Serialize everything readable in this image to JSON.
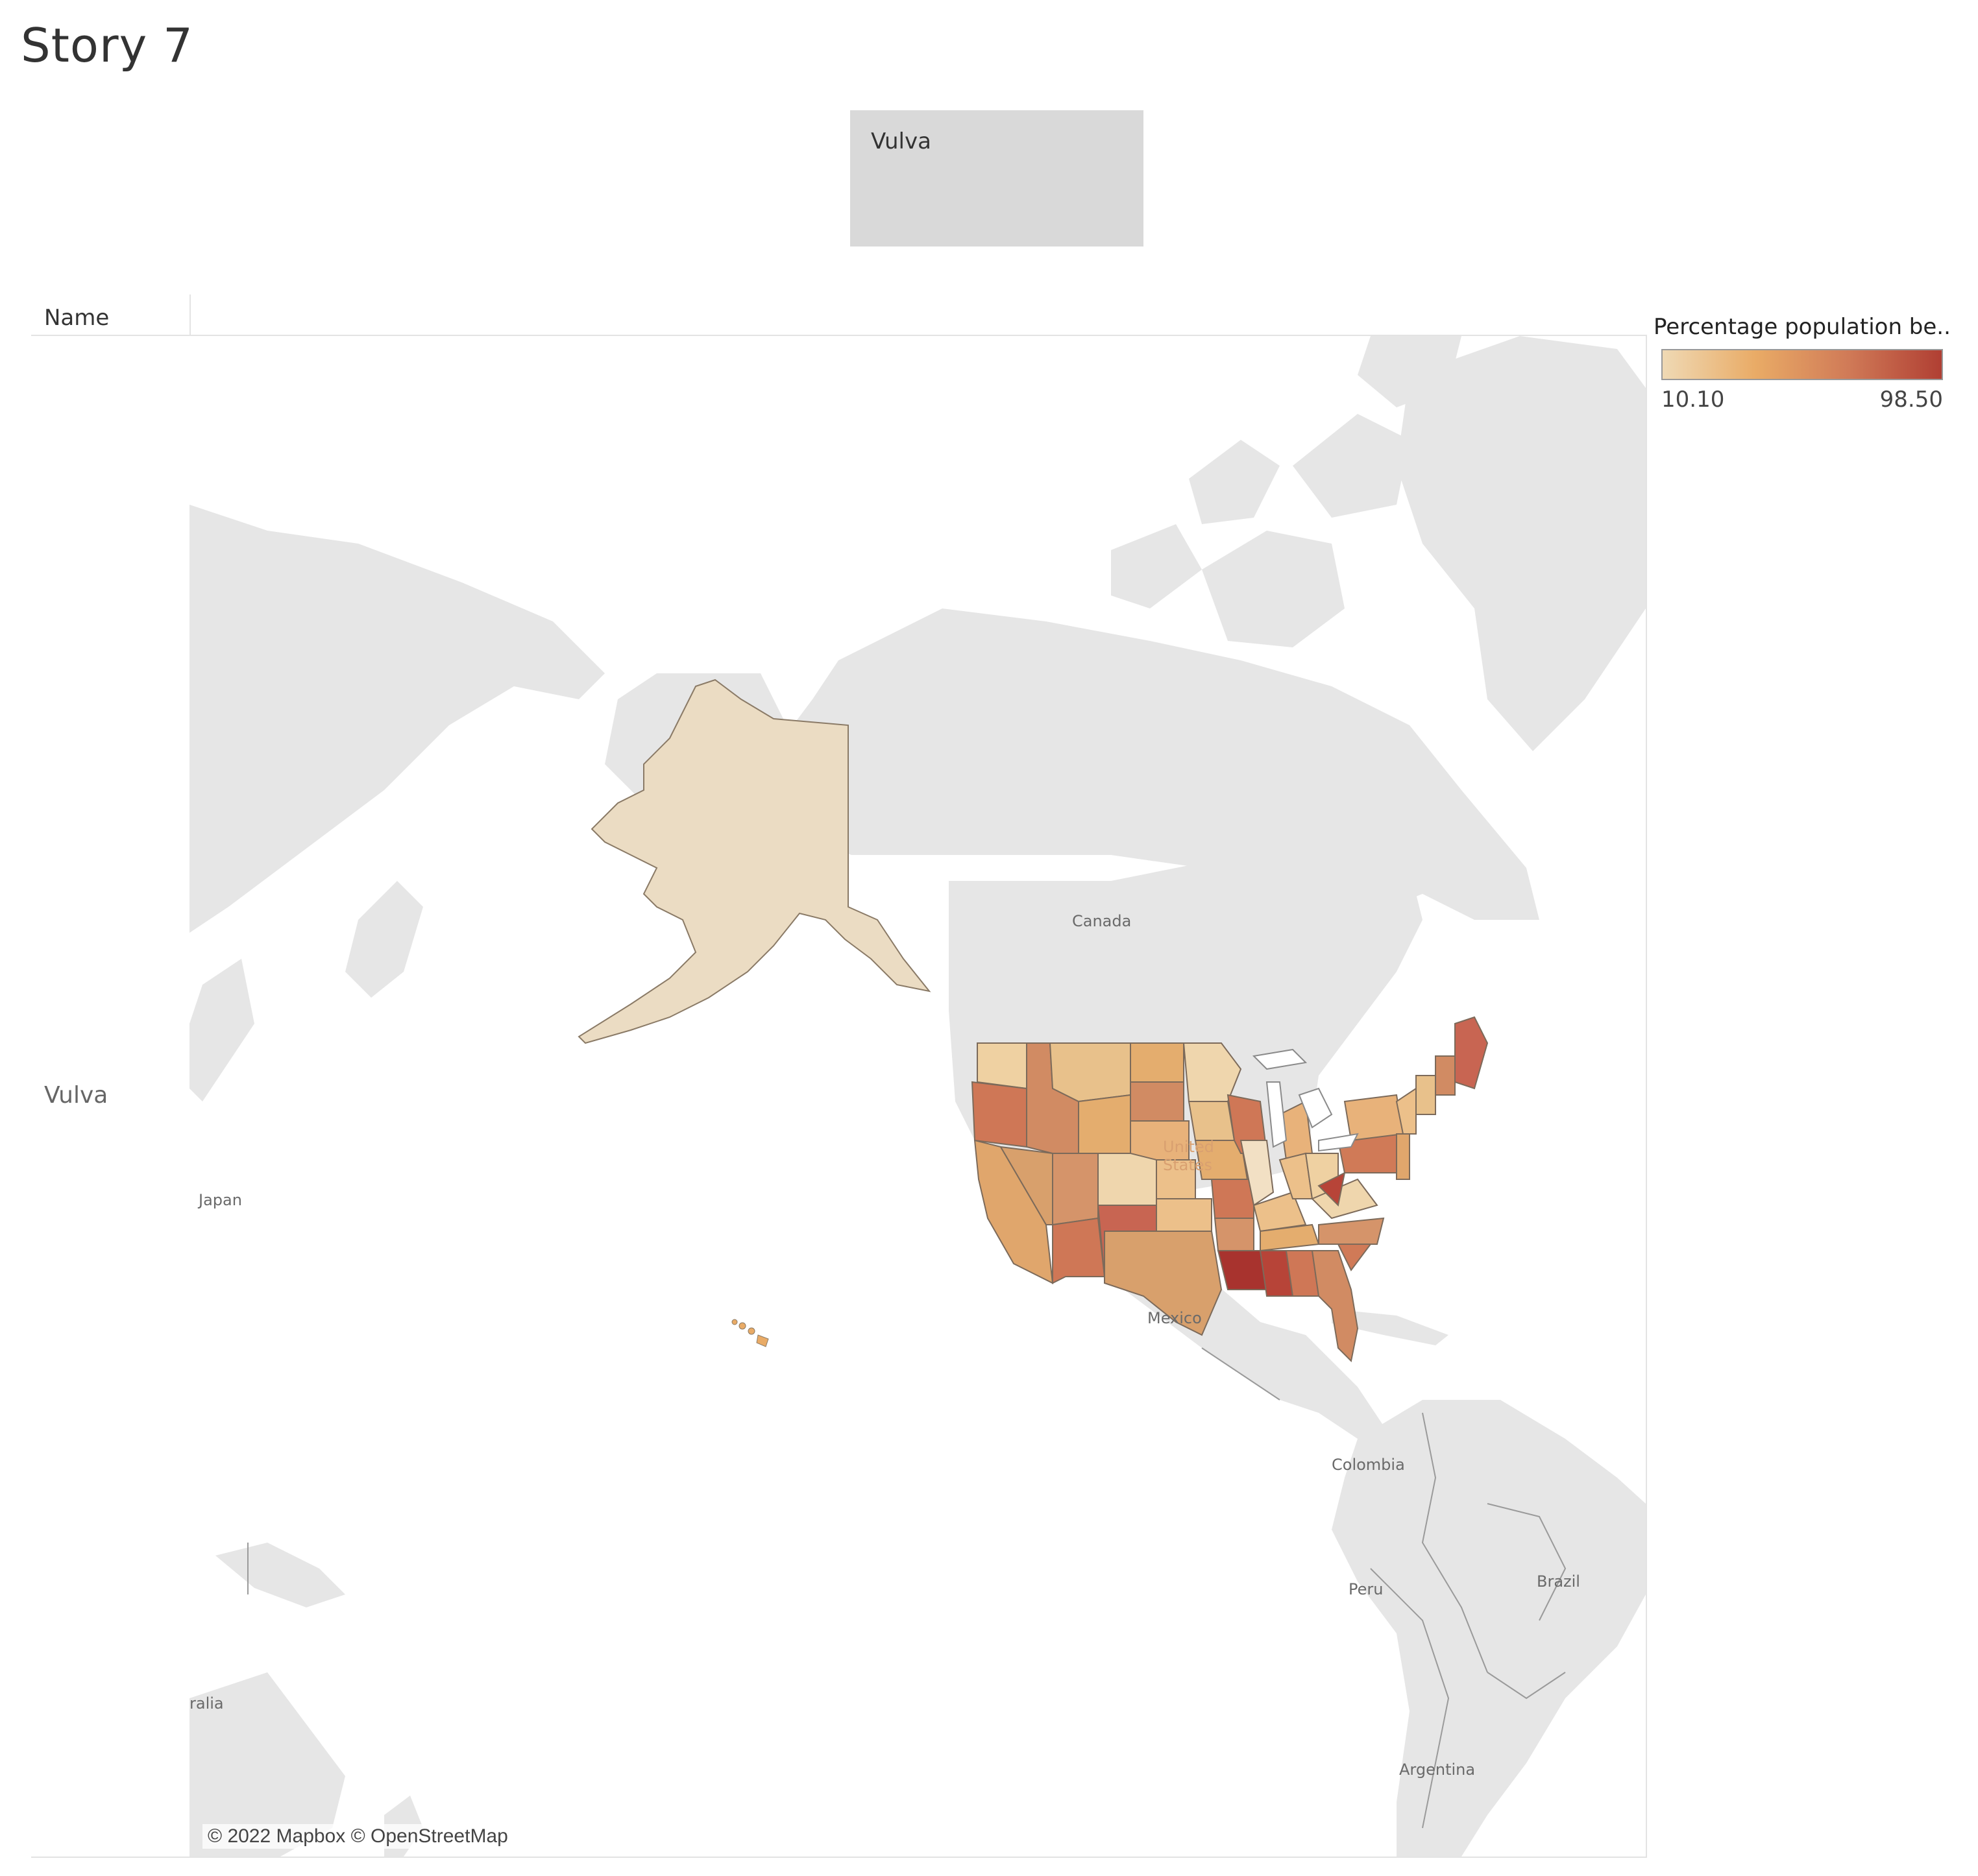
{
  "story": {
    "title": "Story 7"
  },
  "story_points": [
    {
      "label": "Vulva"
    }
  ],
  "sheet": {
    "column_header": "Name",
    "row_label": "Vulva"
  },
  "legend": {
    "title": "Percentage population be..",
    "min_label": "10.10",
    "max_label": "98.50",
    "colors": [
      "#efd9b4",
      "#e9ab66",
      "#d07a57",
      "#b03f33"
    ]
  },
  "map": {
    "place_labels": {
      "canada": "Canada",
      "united_states": "United States",
      "mexico": "Mexico",
      "japan": "Japan",
      "colombia": "Colombia",
      "peru": "Peru",
      "brazil": "Brazil",
      "argentina": "Argentina",
      "australia_partial": "ralia"
    },
    "attribution": "© 2022 Mapbox © OpenStreetMap",
    "land_color": "#e6e6e6",
    "border_color": "#9a9a9a"
  }
}
